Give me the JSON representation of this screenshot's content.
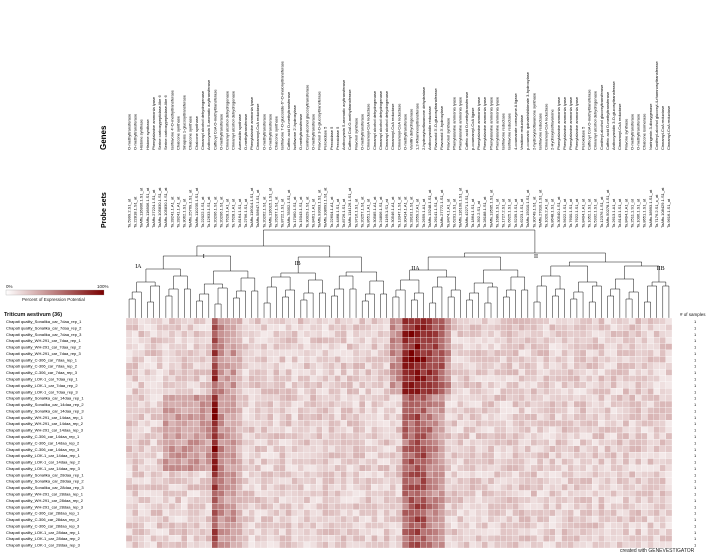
{
  "chart_data": {
    "type": "heatmap",
    "title": "",
    "headers": {
      "genes": "Genes",
      "probe_sets": "Probe sets",
      "samples_count": "# of samples"
    },
    "species": "Triticum aestivum (36)",
    "legend": {
      "min_label": "0%",
      "max_label": "100%",
      "caption": "Percent of Expression Potential",
      "colors": [
        "#ffffff",
        "#7a0000"
      ]
    },
    "clusters": [
      "I",
      "IA",
      "IB",
      "II",
      "IIA",
      "IIB"
    ],
    "columns": [
      {
        "probe": "Ta.5999.2.S1_at",
        "gene": "O-methyltransferase"
      },
      {
        "probe": "Ta.22818.1.S1_at",
        "gene": "O-methyltransferase"
      },
      {
        "probe": "TaAffx.116806.1.S1_at",
        "gene": "Histone synthase"
      },
      {
        "probe": "TaAffx.116806.1.S1_at",
        "gene": "Histone synthase"
      },
      {
        "probe": "TaAffx.27224.1.S1_at",
        "gene": "Phenylalanine ammonia lyase"
      },
      {
        "probe": "TaAffx.105830.1.S1_at",
        "gene": "Serine carboxypeptidase-like 6"
      },
      {
        "probe": "TaAffx.105830.1.S1_at",
        "gene": "Serine carboxypeptidase-like 6"
      },
      {
        "probe": "Ta.28241.1.A1_at",
        "gene": "Isoflavone 4'-O-methyltransferase"
      },
      {
        "probe": "Ta.28241.1.A1_at",
        "gene": "Chalcone synthase"
      },
      {
        "probe": "Ta.3062.1.S1_at",
        "gene": "Sinapate 1-glucosyltransferase"
      },
      {
        "probe": "TaAffx.25769.1.S1_at",
        "gene": "Chalcone synthase"
      },
      {
        "probe": "TaAffx.110235.1.S1_at",
        "gene": "Chalcone synthase"
      },
      {
        "probe": "Ta.22022.1.S1_at",
        "gene": "Cinnamyl alcohol dehydrogenase"
      },
      {
        "probe": "Ta.12633.1.S1_at",
        "gene": "Anthocyanin 5-aromatic acyltransferase"
      },
      {
        "probe": "Ta.20206.1.S1_at",
        "gene": "Caffeoyl CoA O-methyltransferase"
      },
      {
        "probe": "Ta.20206.1.S1_at",
        "gene": "O-methyltransferase"
      },
      {
        "probe": "Ta.7628.1.A1_at",
        "gene": "Cinnamyl alcohol dehydrogenase"
      },
      {
        "probe": "Ta.7628.1.A1_at",
        "gene": "Cinnamyl alcohol dehydrogenase"
      },
      {
        "probe": "Ta.8164.1.S1_at",
        "gene": "Aureusidin synthase"
      },
      {
        "probe": "Ta.2796.1.S1_at",
        "gene": "O-methyltransferase"
      },
      {
        "probe": "TaAffx.116014.1.S1_at",
        "gene": "Phenylalanine ammonia lyase"
      },
      {
        "probe": "TaAffx.58647.1.S1_at",
        "gene": "Cinnamoyl-CoA reductase"
      },
      {
        "probe": "Ta.20262.1.S1_at",
        "gene": "O-methyltransferase"
      },
      {
        "probe": "TaAffx.116015.1.S1_at",
        "gene": "O-methyltransferase"
      },
      {
        "probe": "Ta.26267.1.S1_at",
        "gene": "Chalcone synthase"
      },
      {
        "probe": "Ta.8722.1.S1_at",
        "gene": "Isoflavone 7-O-glucoside-6''-O-malonyltransferase"
      },
      {
        "probe": "TaAffx.78352.1.S1_at",
        "gene": "Caffeic acid O-methyltransferase"
      },
      {
        "probe": "Ta.17060.1.S1_at",
        "gene": "Isoflavone 2'-hydroxylase"
      },
      {
        "probe": "Ta.15043.1.S1_at",
        "gene": "O-methyltransferase"
      },
      {
        "probe": "Ta.30029.1.S1_at",
        "gene": "Coniferyl-alcohol glucosyltransferase"
      },
      {
        "probe": "Ta.8461.1.A1_at",
        "gene": "O-methyltransferase"
      },
      {
        "probe": "TaAffx.93003.1.S1_at",
        "gene": "Flavonol 3-O-glucosyltransferase"
      },
      {
        "probe": "TaAffx.108691.1.S1_at",
        "gene": "Peroxidase 5"
      },
      {
        "probe": "Ta.22604.1.A1_at",
        "gene": "Peroxidase 5"
      },
      {
        "probe": "Ta.4468.1.S1_at",
        "gene": "Peroxidase 5"
      },
      {
        "probe": "Ta.8726.1.S1_at",
        "gene": "Anthocyanin 5-aromatic acyltransferase"
      },
      {
        "probe": "TaAffx.114126.1.S1_at",
        "gene": "Caffeoyl CoA O-methyltransferase"
      },
      {
        "probe": "Ta.9716.1.S1_at",
        "gene": "Flavonol synthase"
      },
      {
        "probe": "Ta.20257.1.S1_at",
        "gene": "O-methyltransferase"
      },
      {
        "probe": "Ta.8651.1.A1_at",
        "gene": "Cinnamoyl-CoA reductase"
      },
      {
        "probe": "Ta.30585.1.A1_at",
        "gene": "Cinnamyl alcohol dehydrogenase"
      },
      {
        "probe": "Ta.24806.1.S1_at",
        "gene": "Cinnamyl alcohol dehydrogenase"
      },
      {
        "probe": "Ta.1169.1.S1_at",
        "gene": "Cinnamyl alcohol dehydrogenase"
      },
      {
        "probe": "Ta.30546.1.A1_at",
        "gene": "Cinnamoyl-CoA reductase"
      },
      {
        "probe": "Ta.13347.1.S1_at",
        "gene": "Cinnamoyl-CoA reductase"
      },
      {
        "probe": "Ta.30414.1.A1_at",
        "gene": "O-methyltransferase"
      },
      {
        "probe": "Ta.28101.1.S1_at",
        "gene": "Vanillin dehydrogenase"
      },
      {
        "probe": "Ta.2659.2.A1_at",
        "gene": "1,2-Rhamnosyltransferase"
      },
      {
        "probe": "Ta.2659.1.A1_at",
        "gene": "2-hydroxyisoflavanone dehydratase"
      },
      {
        "probe": "TaAffx.13248.1.S1_at",
        "gene": "Anthocyanidin reductase"
      },
      {
        "probe": "Ta.26141.1.S1_at",
        "gene": "Flavonoid 3'-O-glucosyltransferase"
      },
      {
        "probe": "TaAffx.27772.1.S1_at",
        "gene": "Flavonoid 3'-hydroxylase"
      },
      {
        "probe": "Ta.8474.1.A1_at",
        "gene": "Flavonol synthase"
      },
      {
        "probe": "Ta.6201.1.S1_at",
        "gene": "Phenylalanine ammonia lyase"
      },
      {
        "probe": "TaAffx.116100.1.S1_at",
        "gene": "Phenylalanine ammonia lyase"
      },
      {
        "probe": "TaAffx.42271.1.S1_at",
        "gene": "Caffeic acid O-methyltransferase"
      },
      {
        "probe": "Ta.1864.1.S1_at",
        "gene": "p-coumaroyl-CoA ligase"
      },
      {
        "probe": "Ta.392.2.S1_at",
        "gene": "Phenylalanine ammonia lyase"
      },
      {
        "probe": "Ta.28188.1.S1_at",
        "gene": "Phenylalanine ammonia lyase"
      },
      {
        "probe": "TaAffx.13505.1.S1_at",
        "gene": "Phenylalanine ammonia lyase"
      },
      {
        "probe": "Ta.1689.1.S1_at",
        "gene": "Phenylalanine ammonia lyase"
      },
      {
        "probe": "Ta.1727.2.S1_at",
        "gene": "Isoflavone reductase"
      },
      {
        "probe": "Ta.6625.1.S1_at",
        "gene": "Isoflavone reductase"
      },
      {
        "probe": "Ta.5239.1.S1_at",
        "gene": "4-coumarate coenzyme A ligase"
      },
      {
        "probe": "Ta.6223.1.S1_at",
        "gene": "Vestitone reductase"
      },
      {
        "probe": "TaAffx.15010.1.S1_at",
        "gene": "p-coumaric quinate/shikimate 3-hydroxylase"
      },
      {
        "probe": "Ta.30749.1.S1_at",
        "gene": "2-hydroxyisoflavanone synthase"
      },
      {
        "probe": "TaAffx.27010.1.S1_at",
        "gene": "Isoflavone reductase"
      },
      {
        "probe": "Ta.1020.2.A1_at",
        "gene": "Cinnamoyl-CoA reductase"
      },
      {
        "probe": "Ta.8648.1.S1_at",
        "gene": "2-Hydroxyisoflavanone"
      },
      {
        "probe": "Ta.30540.1.S1_at",
        "gene": "Phenylalanine ammonia lyase"
      },
      {
        "probe": "Ta.5622.1.S1_at",
        "gene": "Phenylalanine ammonia lyase"
      },
      {
        "probe": "Ta.7600.1.S1_at",
        "gene": "Phenylalanine ammonia lyase"
      },
      {
        "probe": "Ta.7622.1.S1_at",
        "gene": "Phenylalanine ammonia lyase"
      },
      {
        "probe": "Ta.8404.1.A1_at",
        "gene": "Peroxidase 5"
      },
      {
        "probe": "Ta.1052.1.S1_at",
        "gene": "Caffeoyl CoA O-methyltransferase"
      },
      {
        "probe": "Ta.5332.1.S1_at",
        "gene": "Cinnamyl alcohol dehydrogenase"
      },
      {
        "probe": "Ta.12376.1.S1_at",
        "gene": "Coniferyl-alcohol glucosyltransferase"
      },
      {
        "probe": "TaAffx.50278.1.S1_at",
        "gene": "Caffeic acid O-methyltransferase"
      },
      {
        "probe": "Ta.2613.1.A1_at",
        "gene": "Anthocyanidin 3-O-glucosyltransferase"
      },
      {
        "probe": "Ta.8143.1.S1_at",
        "gene": "Cinnamoyl-CoA reductase"
      },
      {
        "probe": "Ta.8494.1.A1_at",
        "gene": "Flavone synthase"
      },
      {
        "probe": "Ta.2511.1.S1_at",
        "gene": "O-methyltransferase"
      },
      {
        "probe": "Ta.1006.1.S1_at",
        "gene": "O-methyltransferase"
      },
      {
        "probe": "Ta.8651.1.S1_at",
        "gene": "Chalcone isomerase"
      },
      {
        "probe": "TaAffx.38993.1.S1_at",
        "gene": "Naringenin 3-dioxygenase"
      },
      {
        "probe": "Ta.7176.2.S1_x_at",
        "gene": "Coniferyl-alcohol glucosyl-4-rhamnosyltransferase"
      },
      {
        "probe": "TaAffx.108429.1.S1_at",
        "gene": "Cinnamyl-CoA reductase"
      },
      {
        "probe": "Ta.9616.1.S1_at",
        "gene": "Cinnamyl-CoA reductase"
      }
    ],
    "rows": [
      "Chapati quality_Sonalika_car_7daa_rep_1",
      "Chapati quality_Sonalika_car_7daa_rep_2",
      "Chapati quality_Sonalika_car_7daa_rep_3",
      "Chapati quality_WH-291_car_7daa_rep_1",
      "Chapati quality_WH-291_car_7daa_rep_2",
      "Chapati quality_WH-291_car_7daa_rep_3",
      "Chapati quality_C-306_car_7daa_rep_1",
      "Chapati quality_C-306_car_7daa_rep_2",
      "Chapati quality_C-306_car_7daa_rep_3",
      "Chapati quality_LOK-1_car_7daa_rep_1",
      "Chapati quality_LOK-1_car_7daa_rep_2",
      "Chapati quality_LOK-1_car_7daa_rep_3",
      "Chapati quality_Sonalika_car_14daa_rep_1",
      "Chapati quality_Sonalika_car_14daa_rep_2",
      "Chapati quality_Sonalika_car_14daa_rep_3",
      "Chapati quality_WH-291_car_14daa_rep_1",
      "Chapati quality_WH-291_car_14daa_rep_2",
      "Chapati quality_WH-291_car_14daa_rep_3",
      "Chapati quality_C-306_car_14daa_rep_1",
      "Chapati quality_C-306_car_14daa_rep_2",
      "Chapati quality_C-306_car_14daa_rep_3",
      "Chapati quality_LOK-1_car_14daa_rep_1",
      "Chapati quality_LOK-1_car_14daa_rep_2",
      "Chapati quality_LOK-1_car_14daa_rep_3",
      "Chapati quality_Sonalika_car_28daa_rep_1",
      "Chapati quality_Sonalika_car_28daa_rep_2",
      "Chapati quality_Sonalika_car_28daa_rep_3",
      "Chapati quality_WH-291_car_28daa_rep_1",
      "Chapati quality_WH-291_car_28daa_rep_2",
      "Chapati quality_WH-291_car_28daa_rep_3",
      "Chapati quality_C-306_car_28daa_rep_1",
      "Chapati quality_C-306_car_28daa_rep_2",
      "Chapati quality_C-306_car_28daa_rep_3",
      "Chapati quality_LOK-1_car_28daa_rep_1",
      "Chapati quality_LOK-1_car_28daa_rep_2",
      "Chapati quality_LOK-1_car_28daa_rep_3"
    ],
    "samples_per_row": 1,
    "value_range": [
      0,
      100
    ],
    "value_units": "%"
  },
  "credit": "created with GENEVESTIGATOR"
}
